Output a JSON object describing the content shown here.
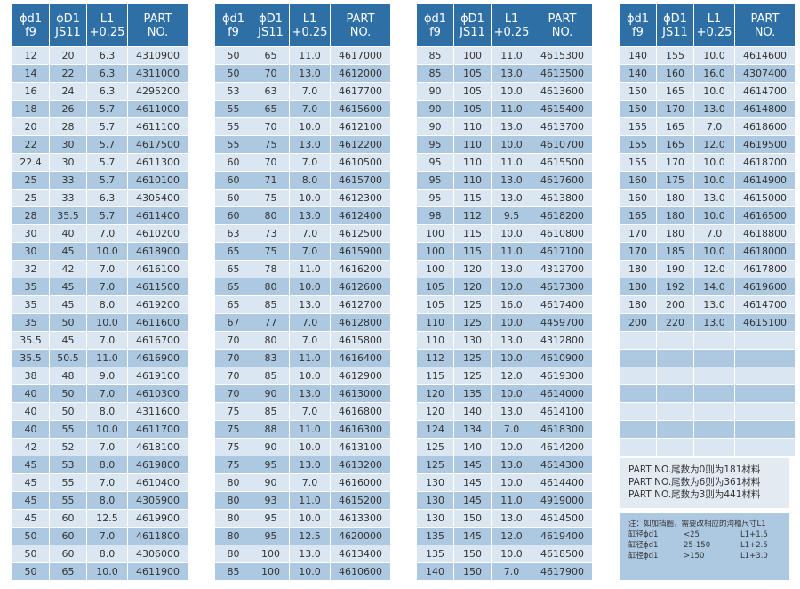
{
  "tables": [
    {
      "header": [
        [
          "ϕd1",
          "f9"
        ],
        [
          "ϕD1",
          "JS11"
        ],
        [
          "L1",
          "+0.25"
        ],
        [
          "PART",
          "NO."
        ]
      ],
      "rows": [
        [
          "12",
          "20",
          "6.3",
          "4310900"
        ],
        [
          "14",
          "22",
          "6.3",
          "4311000"
        ],
        [
          "16",
          "24",
          "6.3",
          "4295200"
        ],
        [
          "18",
          "26",
          "5.7",
          "4611000"
        ],
        [
          "20",
          "28",
          "5.7",
          "4611100"
        ],
        [
          "22",
          "30",
          "5.7",
          "4617500"
        ],
        [
          "22.4",
          "30",
          "5.7",
          "4611300"
        ],
        [
          "25",
          "33",
          "5.7",
          "4610100"
        ],
        [
          "25",
          "33",
          "6.3",
          "4305400"
        ],
        [
          "28",
          "35.5",
          "5.7",
          "4611400"
        ],
        [
          "30",
          "40",
          "7.0",
          "4610200"
        ],
        [
          "30",
          "45",
          "10.0",
          "4618900"
        ],
        [
          "32",
          "42",
          "7.0",
          "4616100"
        ],
        [
          "35",
          "45",
          "7.0",
          "4611500"
        ],
        [
          "35",
          "45",
          "8.0",
          "4619200"
        ],
        [
          "35",
          "50",
          "10.0",
          "4611600"
        ],
        [
          "35.5",
          "45",
          "7.0",
          "4616700"
        ],
        [
          "35.5",
          "50.5",
          "11.0",
          "4616900"
        ],
        [
          "38",
          "48",
          "9.0",
          "4619100"
        ],
        [
          "40",
          "50",
          "7.0",
          "4610300"
        ],
        [
          "40",
          "50",
          "8.0",
          "4311600"
        ],
        [
          "40",
          "55",
          "10.0",
          "4611700"
        ],
        [
          "42",
          "52",
          "7.0",
          "4618100"
        ],
        [
          "45",
          "53",
          "8.0",
          "4619800"
        ],
        [
          "45",
          "55",
          "7.0",
          "4610400"
        ],
        [
          "45",
          "55",
          "8.0",
          "4305900"
        ],
        [
          "45",
          "60",
          "12.5",
          "4619900"
        ],
        [
          "50",
          "60",
          "7.0",
          "4611800"
        ],
        [
          "50",
          "60",
          "8.0",
          "4306000"
        ],
        [
          "50",
          "65",
          "10.0",
          "4611900"
        ]
      ]
    },
    {
      "header": [
        [
          "ϕd1",
          "f9"
        ],
        [
          "ϕD1",
          "JS11"
        ],
        [
          "L1",
          "+0.25"
        ],
        [
          "PART",
          "NO."
        ]
      ],
      "rows": [
        [
          "50",
          "65",
          "11.0",
          "4617000"
        ],
        [
          "50",
          "70",
          "13.0",
          "4612000"
        ],
        [
          "53",
          "63",
          "7.0",
          "4617700"
        ],
        [
          "55",
          "65",
          "7.0",
          "4615600"
        ],
        [
          "55",
          "70",
          "10.0",
          "4612100"
        ],
        [
          "55",
          "75",
          "13.0",
          "4612200"
        ],
        [
          "60",
          "70",
          "7.0",
          "4610500"
        ],
        [
          "60",
          "71",
          "8.0",
          "4615700"
        ],
        [
          "60",
          "75",
          "10.0",
          "4612300"
        ],
        [
          "60",
          "80",
          "13.0",
          "4612400"
        ],
        [
          "63",
          "73",
          "7.0",
          "4612500"
        ],
        [
          "65",
          "75",
          "7.0",
          "4615900"
        ],
        [
          "65",
          "78",
          "11.0",
          "4616200"
        ],
        [
          "65",
          "80",
          "10.0",
          "4612600"
        ],
        [
          "65",
          "85",
          "13.0",
          "4612700"
        ],
        [
          "67",
          "77",
          "7.0",
          "4612800"
        ],
        [
          "70",
          "80",
          "7.0",
          "4615800"
        ],
        [
          "70",
          "83",
          "11.0",
          "4616400"
        ],
        [
          "70",
          "85",
          "10.0",
          "4612900"
        ],
        [
          "70",
          "90",
          "13.0",
          "4613000"
        ],
        [
          "75",
          "85",
          "7.0",
          "4616800"
        ],
        [
          "75",
          "88",
          "11.0",
          "4616300"
        ],
        [
          "75",
          "90",
          "10.0",
          "4613100"
        ],
        [
          "75",
          "95",
          "13.0",
          "4613200"
        ],
        [
          "80",
          "90",
          "7.0",
          "4616000"
        ],
        [
          "80",
          "93",
          "11.0",
          "4615200"
        ],
        [
          "80",
          "95",
          "10.0",
          "4613300"
        ],
        [
          "80",
          "95",
          "12.5",
          "4620000"
        ],
        [
          "80",
          "100",
          "13.0",
          "4613400"
        ],
        [
          "85",
          "100",
          "10.0",
          "4610600"
        ]
      ]
    },
    {
      "header": [
        [
          "ϕd1",
          "f9"
        ],
        [
          "ϕD1",
          "JS11"
        ],
        [
          "L1",
          "+0.25"
        ],
        [
          "PART",
          "NO."
        ]
      ],
      "rows": [
        [
          "85",
          "100",
          "11.0",
          "4615300"
        ],
        [
          "85",
          "105",
          "13.0",
          "4613500"
        ],
        [
          "90",
          "105",
          "10.0",
          "4613600"
        ],
        [
          "90",
          "105",
          "11.0",
          "4615400"
        ],
        [
          "90",
          "110",
          "13.0",
          "4613700"
        ],
        [
          "95",
          "110",
          "10.0",
          "4610700"
        ],
        [
          "95",
          "110",
          "11.0",
          "4615500"
        ],
        [
          "95",
          "110",
          "13.0",
          "4617600"
        ],
        [
          "95",
          "115",
          "13.0",
          "4613800"
        ],
        [
          "98",
          "112",
          "9.5",
          "4618200"
        ],
        [
          "100",
          "115",
          "10.0",
          "4610800"
        ],
        [
          "100",
          "115",
          "11.0",
          "4617100"
        ],
        [
          "100",
          "120",
          "13.0",
          "4312700"
        ],
        [
          "105",
          "120",
          "10.0",
          "4617300"
        ],
        [
          "105",
          "125",
          "16.0",
          "4617400"
        ],
        [
          "110",
          "125",
          "10.0",
          "4459700"
        ],
        [
          "110",
          "130",
          "13.0",
          "4312800"
        ],
        [
          "112",
          "125",
          "10.0",
          "4610900"
        ],
        [
          "115",
          "125",
          "12.0",
          "4619300"
        ],
        [
          "120",
          "135",
          "10.0",
          "4614000"
        ],
        [
          "120",
          "140",
          "13.0",
          "4614100"
        ],
        [
          "124",
          "134",
          "7.0",
          "4618300"
        ],
        [
          "125",
          "140",
          "10.0",
          "4614200"
        ],
        [
          "125",
          "145",
          "13.0",
          "4614300"
        ],
        [
          "130",
          "145",
          "10.0",
          "4614400"
        ],
        [
          "130",
          "145",
          "11.0",
          "4919000"
        ],
        [
          "130",
          "150",
          "13.0",
          "4614500"
        ],
        [
          "135",
          "145",
          "12.0",
          "4619400"
        ],
        [
          "135",
          "150",
          "10.0",
          "4618500"
        ],
        [
          "140",
          "150",
          "7.0",
          "4617900"
        ]
      ]
    },
    {
      "header": [
        [
          "ϕd1",
          "f9"
        ],
        [
          "ϕD1",
          "JS11"
        ],
        [
          "L1",
          "+0.25"
        ],
        [
          "PART",
          "NO."
        ]
      ],
      "rows": [
        [
          "140",
          "155",
          "10.0",
          "4614600"
        ],
        [
          "140",
          "160",
          "16.0",
          "4307400"
        ],
        [
          "150",
          "165",
          "10.0",
          "4614700"
        ],
        [
          "150",
          "170",
          "13.0",
          "4614800"
        ],
        [
          "155",
          "165",
          "7.0",
          "4618600"
        ],
        [
          "155",
          "165",
          "12.0",
          "4619500"
        ],
        [
          "155",
          "170",
          "10.0",
          "4618700"
        ],
        [
          "160",
          "175",
          "10.0",
          "4614900"
        ],
        [
          "160",
          "180",
          "13.0",
          "4615000"
        ],
        [
          "165",
          "180",
          "10.0",
          "4616500"
        ],
        [
          "170",
          "180",
          "7.0",
          "4618800"
        ],
        [
          "170",
          "185",
          "10.0",
          "4618000"
        ],
        [
          "180",
          "190",
          "12.0",
          "4617800"
        ],
        [
          "180",
          "192",
          "14.0",
          "4619600"
        ],
        [
          "180",
          "200",
          "13.0",
          "4614700"
        ],
        [
          "200",
          "220",
          "13.0",
          "4615100"
        ]
      ]
    }
  ],
  "notes": {
    "material": [
      "PART NO.尾数为0则为181材料",
      "PART NO.尾数为6则为361材料",
      "PART NO.尾数为3则为441材料"
    ],
    "groove_title": "注：如加挡圈，需要改相应的沟槽尺寸L1",
    "groove_rows": [
      [
        "缸径ϕd1",
        "<25",
        "L1+1.5"
      ],
      [
        "缸径ϕd1",
        "25-150",
        "L1+2.5"
      ],
      [
        "缸径ϕd1",
        ">150",
        "L1+3.0"
      ]
    ]
  }
}
